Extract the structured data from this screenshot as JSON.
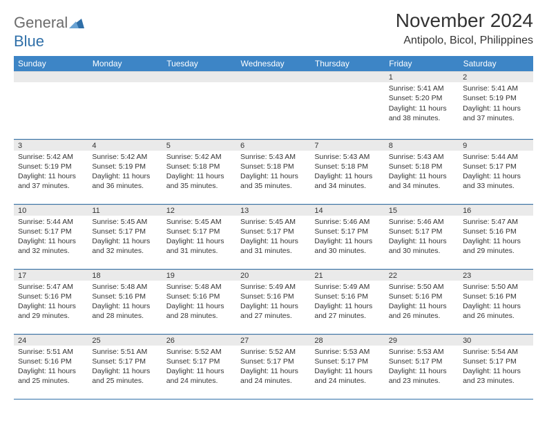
{
  "logo": {
    "general": "General",
    "blue": "Blue"
  },
  "title": "November 2024",
  "location": "Antipolo, Bicol, Philippines",
  "colors": {
    "header_bg": "#3d85c6",
    "header_text": "#ffffff",
    "daynum_bg": "#eaeaea",
    "rule": "#2f6fa8",
    "logo_gray": "#6b6b6b",
    "logo_blue": "#2f6fa8",
    "text": "#333333"
  },
  "day_headers": [
    "Sunday",
    "Monday",
    "Tuesday",
    "Wednesday",
    "Thursday",
    "Friday",
    "Saturday"
  ],
  "weeks": [
    [
      {
        "n": "",
        "sr": "",
        "ss": "",
        "dl": ""
      },
      {
        "n": "",
        "sr": "",
        "ss": "",
        "dl": ""
      },
      {
        "n": "",
        "sr": "",
        "ss": "",
        "dl": ""
      },
      {
        "n": "",
        "sr": "",
        "ss": "",
        "dl": ""
      },
      {
        "n": "",
        "sr": "",
        "ss": "",
        "dl": ""
      },
      {
        "n": "1",
        "sr": "Sunrise: 5:41 AM",
        "ss": "Sunset: 5:20 PM",
        "dl": "Daylight: 11 hours and 38 minutes."
      },
      {
        "n": "2",
        "sr": "Sunrise: 5:41 AM",
        "ss": "Sunset: 5:19 PM",
        "dl": "Daylight: 11 hours and 37 minutes."
      }
    ],
    [
      {
        "n": "3",
        "sr": "Sunrise: 5:42 AM",
        "ss": "Sunset: 5:19 PM",
        "dl": "Daylight: 11 hours and 37 minutes."
      },
      {
        "n": "4",
        "sr": "Sunrise: 5:42 AM",
        "ss": "Sunset: 5:19 PM",
        "dl": "Daylight: 11 hours and 36 minutes."
      },
      {
        "n": "5",
        "sr": "Sunrise: 5:42 AM",
        "ss": "Sunset: 5:18 PM",
        "dl": "Daylight: 11 hours and 35 minutes."
      },
      {
        "n": "6",
        "sr": "Sunrise: 5:43 AM",
        "ss": "Sunset: 5:18 PM",
        "dl": "Daylight: 11 hours and 35 minutes."
      },
      {
        "n": "7",
        "sr": "Sunrise: 5:43 AM",
        "ss": "Sunset: 5:18 PM",
        "dl": "Daylight: 11 hours and 34 minutes."
      },
      {
        "n": "8",
        "sr": "Sunrise: 5:43 AM",
        "ss": "Sunset: 5:18 PM",
        "dl": "Daylight: 11 hours and 34 minutes."
      },
      {
        "n": "9",
        "sr": "Sunrise: 5:44 AM",
        "ss": "Sunset: 5:17 PM",
        "dl": "Daylight: 11 hours and 33 minutes."
      }
    ],
    [
      {
        "n": "10",
        "sr": "Sunrise: 5:44 AM",
        "ss": "Sunset: 5:17 PM",
        "dl": "Daylight: 11 hours and 32 minutes."
      },
      {
        "n": "11",
        "sr": "Sunrise: 5:45 AM",
        "ss": "Sunset: 5:17 PM",
        "dl": "Daylight: 11 hours and 32 minutes."
      },
      {
        "n": "12",
        "sr": "Sunrise: 5:45 AM",
        "ss": "Sunset: 5:17 PM",
        "dl": "Daylight: 11 hours and 31 minutes."
      },
      {
        "n": "13",
        "sr": "Sunrise: 5:45 AM",
        "ss": "Sunset: 5:17 PM",
        "dl": "Daylight: 11 hours and 31 minutes."
      },
      {
        "n": "14",
        "sr": "Sunrise: 5:46 AM",
        "ss": "Sunset: 5:17 PM",
        "dl": "Daylight: 11 hours and 30 minutes."
      },
      {
        "n": "15",
        "sr": "Sunrise: 5:46 AM",
        "ss": "Sunset: 5:17 PM",
        "dl": "Daylight: 11 hours and 30 minutes."
      },
      {
        "n": "16",
        "sr": "Sunrise: 5:47 AM",
        "ss": "Sunset: 5:16 PM",
        "dl": "Daylight: 11 hours and 29 minutes."
      }
    ],
    [
      {
        "n": "17",
        "sr": "Sunrise: 5:47 AM",
        "ss": "Sunset: 5:16 PM",
        "dl": "Daylight: 11 hours and 29 minutes."
      },
      {
        "n": "18",
        "sr": "Sunrise: 5:48 AM",
        "ss": "Sunset: 5:16 PM",
        "dl": "Daylight: 11 hours and 28 minutes."
      },
      {
        "n": "19",
        "sr": "Sunrise: 5:48 AM",
        "ss": "Sunset: 5:16 PM",
        "dl": "Daylight: 11 hours and 28 minutes."
      },
      {
        "n": "20",
        "sr": "Sunrise: 5:49 AM",
        "ss": "Sunset: 5:16 PM",
        "dl": "Daylight: 11 hours and 27 minutes."
      },
      {
        "n": "21",
        "sr": "Sunrise: 5:49 AM",
        "ss": "Sunset: 5:16 PM",
        "dl": "Daylight: 11 hours and 27 minutes."
      },
      {
        "n": "22",
        "sr": "Sunrise: 5:50 AM",
        "ss": "Sunset: 5:16 PM",
        "dl": "Daylight: 11 hours and 26 minutes."
      },
      {
        "n": "23",
        "sr": "Sunrise: 5:50 AM",
        "ss": "Sunset: 5:16 PM",
        "dl": "Daylight: 11 hours and 26 minutes."
      }
    ],
    [
      {
        "n": "24",
        "sr": "Sunrise: 5:51 AM",
        "ss": "Sunset: 5:16 PM",
        "dl": "Daylight: 11 hours and 25 minutes."
      },
      {
        "n": "25",
        "sr": "Sunrise: 5:51 AM",
        "ss": "Sunset: 5:17 PM",
        "dl": "Daylight: 11 hours and 25 minutes."
      },
      {
        "n": "26",
        "sr": "Sunrise: 5:52 AM",
        "ss": "Sunset: 5:17 PM",
        "dl": "Daylight: 11 hours and 24 minutes."
      },
      {
        "n": "27",
        "sr": "Sunrise: 5:52 AM",
        "ss": "Sunset: 5:17 PM",
        "dl": "Daylight: 11 hours and 24 minutes."
      },
      {
        "n": "28",
        "sr": "Sunrise: 5:53 AM",
        "ss": "Sunset: 5:17 PM",
        "dl": "Daylight: 11 hours and 24 minutes."
      },
      {
        "n": "29",
        "sr": "Sunrise: 5:53 AM",
        "ss": "Sunset: 5:17 PM",
        "dl": "Daylight: 11 hours and 23 minutes."
      },
      {
        "n": "30",
        "sr": "Sunrise: 5:54 AM",
        "ss": "Sunset: 5:17 PM",
        "dl": "Daylight: 11 hours and 23 minutes."
      }
    ]
  ]
}
